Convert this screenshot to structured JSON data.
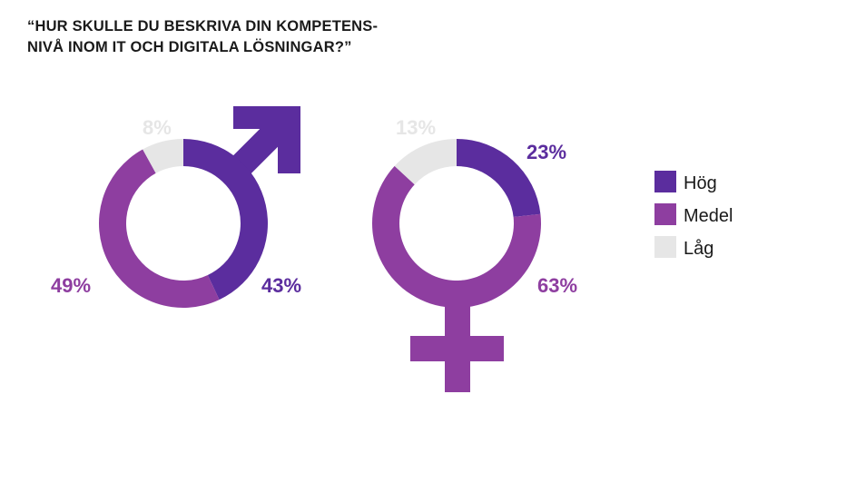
{
  "title": {
    "line1": "“HUR SKULLE DU BESKRIVA DIN KOMPETENS-",
    "line2": "NIVÅ INOM IT OCH DIGITALA LÖSNINGAR?”"
  },
  "colors": {
    "hog": "#5b2d9e",
    "medel": "#8e3ea0",
    "lag": "#e6e6e6"
  },
  "chart_data": [
    {
      "type": "donut",
      "symbol": "male-symbol",
      "categories": [
        "Hög",
        "Medel",
        "Låg"
      ],
      "values": [
        43,
        49,
        8
      ],
      "labels": [
        "43%",
        "49%",
        "8%"
      ]
    },
    {
      "type": "donut",
      "symbol": "female-symbol",
      "categories": [
        "Hög",
        "Medel",
        "Låg"
      ],
      "values": [
        23,
        63,
        13
      ],
      "labels": [
        "23%",
        "63%",
        "13%"
      ]
    }
  ],
  "legend": {
    "items": [
      {
        "label": "Hög",
        "color_key": "hog"
      },
      {
        "label": "Medel",
        "color_key": "medel"
      },
      {
        "label": "Låg",
        "color_key": "lag"
      }
    ]
  }
}
